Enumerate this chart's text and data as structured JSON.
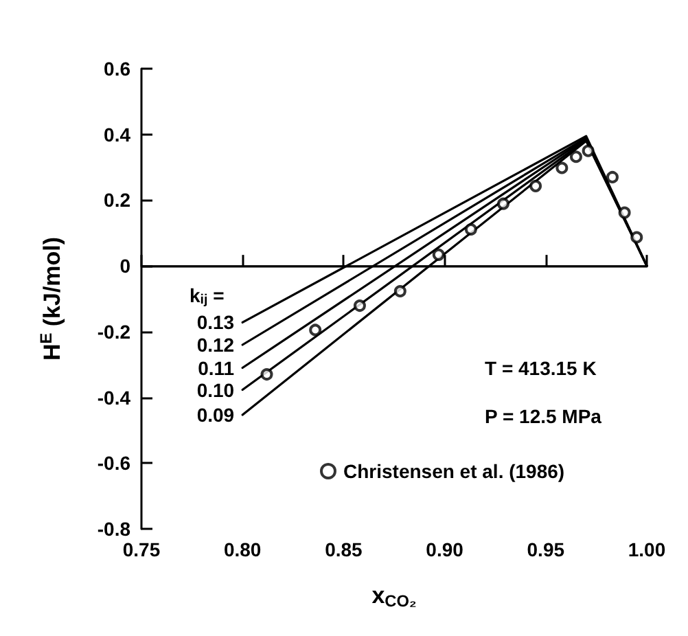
{
  "chart_data": {
    "type": "line",
    "xlabel": "x$_{CO₂}$",
    "ylabel": "H$^{E}$ (kJ/mol)",
    "x": [
      0.8,
      0.97,
      1.0
    ],
    "series": [
      {
        "name": "0.13",
        "color": "#000000",
        "marker": "none",
        "values": [
          -0.172,
          0.395,
          0
        ]
      },
      {
        "name": "0.12",
        "color": "#000000",
        "marker": "none",
        "values": [
          -0.24,
          0.39,
          0
        ]
      },
      {
        "name": "0.11",
        "color": "#000000",
        "marker": "none",
        "values": [
          -0.31,
          0.387,
          0
        ]
      },
      {
        "name": "0.10",
        "color": "#000000",
        "marker": "none",
        "values": [
          -0.377,
          0.383,
          0
        ]
      },
      {
        "name": "0.09",
        "color": "#000000",
        "marker": "none",
        "values": [
          -0.453,
          0.38,
          0
        ]
      },
      {
        "name": "Christensen et al. (1986)",
        "type": "scatter",
        "color": "#000000",
        "marker": "circle",
        "x": [
          0.812,
          0.836,
          0.858,
          0.878,
          0.897,
          0.913,
          0.929,
          0.945,
          0.958,
          0.965,
          0.971,
          0.983,
          0.989,
          0.995
        ],
        "values": [
          -0.33,
          -0.195,
          -0.121,
          -0.077,
          0.034,
          0.111,
          0.189,
          0.243,
          0.298,
          0.332,
          0.35,
          0.27,
          0.162,
          0.087
        ]
      }
    ],
    "xlim": [
      0.75,
      1.0
    ],
    "xticks": [
      0.75,
      {
        "value": 0.8,
        "label": "0.80"
      },
      0.85,
      {
        "value": 0.9,
        "label": "0.90"
      },
      0.95,
      {
        "value": 1.0,
        "label": "1.00"
      }
    ],
    "ylim": [
      -0.8,
      0.6
    ],
    "yticks": [
      -0.8,
      -0.6,
      -0.4,
      -0.2,
      0,
      0.2,
      0.4,
      0.6
    ],
    "ref_lines": [
      {
        "axis": "y",
        "value": 0,
        "color": "#000000"
      }
    ],
    "annotations": [
      "k$_{ij}$ =",
      "T = 413.15 K",
      "P = 12.5 MPa"
    ],
    "line_style": "solid",
    "grid": false,
    "legend": "bottom"
  }
}
